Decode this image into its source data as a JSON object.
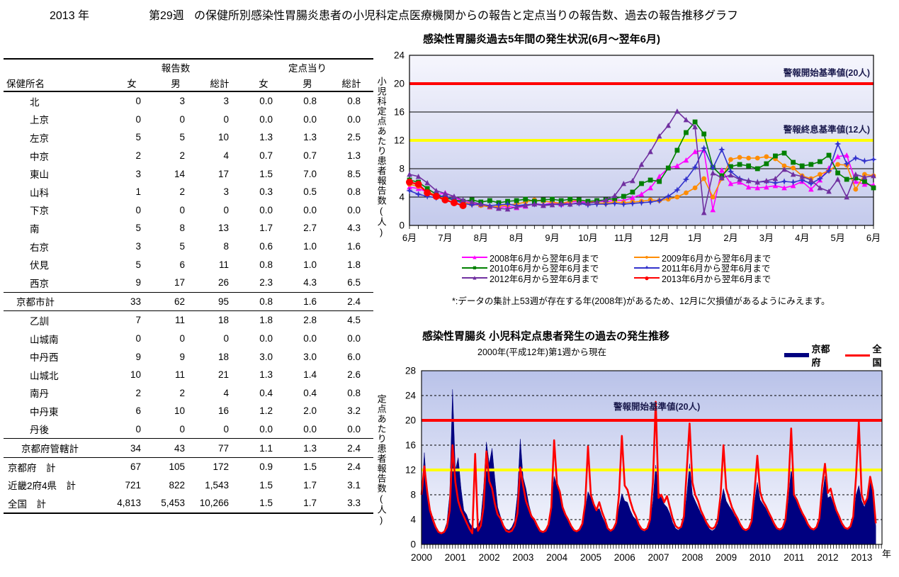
{
  "page_title": {
    "year": "2013 年",
    "week": "第29週",
    "rest": "の保健所別感染性胃腸炎患者の小児科定点医療機関からの報告と定点当りの報告数、過去の報告推移グラフ"
  },
  "table": {
    "group_headers": {
      "reports": "報告数",
      "per_sentinel": "定点当り"
    },
    "col_headers": {
      "name": "保健所名",
      "f": "女",
      "m": "男",
      "total": "総計"
    },
    "rows": [
      {
        "type": "ward",
        "name": "北",
        "values": [
          "0",
          "3",
          "3",
          "0.0",
          "0.8",
          "0.8"
        ]
      },
      {
        "type": "ward",
        "name": "上京",
        "values": [
          "0",
          "0",
          "0",
          "0.0",
          "0.0",
          "0.0"
        ]
      },
      {
        "type": "ward",
        "name": "左京",
        "values": [
          "5",
          "5",
          "10",
          "1.3",
          "1.3",
          "2.5"
        ]
      },
      {
        "type": "ward",
        "name": "中京",
        "values": [
          "2",
          "2",
          "4",
          "0.7",
          "0.7",
          "1.3"
        ]
      },
      {
        "type": "ward",
        "name": "東山",
        "values": [
          "3",
          "14",
          "17",
          "1.5",
          "7.0",
          "8.5"
        ]
      },
      {
        "type": "ward",
        "name": "山科",
        "values": [
          "1",
          "2",
          "3",
          "0.3",
          "0.5",
          "0.8"
        ]
      },
      {
        "type": "ward",
        "name": "下京",
        "values": [
          "0",
          "0",
          "0",
          "0.0",
          "0.0",
          "0.0"
        ]
      },
      {
        "type": "ward",
        "name": "南",
        "values": [
          "5",
          "8",
          "13",
          "1.7",
          "2.7",
          "4.3"
        ]
      },
      {
        "type": "ward",
        "name": "右京",
        "values": [
          "3",
          "5",
          "8",
          "0.6",
          "1.0",
          "1.6"
        ]
      },
      {
        "type": "ward",
        "name": "伏見",
        "values": [
          "5",
          "6",
          "11",
          "0.8",
          "1.0",
          "1.8"
        ]
      },
      {
        "type": "ward",
        "name": "西京",
        "values": [
          "9",
          "17",
          "26",
          "2.3",
          "4.3",
          "6.5"
        ]
      },
      {
        "type": "city-total",
        "name": "京都市計",
        "values": [
          "33",
          "62",
          "95",
          "0.8",
          "1.6",
          "2.4"
        ]
      },
      {
        "type": "ward",
        "name": "乙訓",
        "values": [
          "7",
          "11",
          "18",
          "1.8",
          "2.8",
          "4.5"
        ]
      },
      {
        "type": "ward",
        "name": "山城南",
        "values": [
          "0",
          "0",
          "0",
          "0.0",
          "0.0",
          "0.0"
        ]
      },
      {
        "type": "ward",
        "name": "中丹西",
        "values": [
          "9",
          "9",
          "18",
          "3.0",
          "3.0",
          "6.0"
        ]
      },
      {
        "type": "ward",
        "name": "山城北",
        "values": [
          "10",
          "11",
          "21",
          "1.3",
          "1.4",
          "2.6"
        ]
      },
      {
        "type": "ward",
        "name": "南丹",
        "values": [
          "2",
          "2",
          "4",
          "0.4",
          "0.4",
          "0.8"
        ]
      },
      {
        "type": "ward",
        "name": "中丹東",
        "values": [
          "6",
          "10",
          "16",
          "1.2",
          "2.0",
          "3.2"
        ]
      },
      {
        "type": "ward",
        "name": "丹後",
        "values": [
          "0",
          "0",
          "0",
          "0.0",
          "0.0",
          "0.0"
        ]
      },
      {
        "type": "kanketsu",
        "name": "京都府管轄計",
        "values": [
          "34",
          "43",
          "77",
          "1.1",
          "1.3",
          "2.4"
        ]
      },
      {
        "type": "grand",
        "name": "京都府　計",
        "values": [
          "67",
          "105",
          "172",
          "0.9",
          "1.5",
          "2.4"
        ]
      },
      {
        "type": "grand",
        "name": "近畿2府4県　計",
        "values": [
          "721",
          "822",
          "1,543",
          "1.5",
          "1.7",
          "3.1"
        ]
      },
      {
        "type": "grand grand-last",
        "name": "全国　計",
        "values": [
          "4,813",
          "5,453",
          "10,266",
          "1.5",
          "1.7",
          "3.3"
        ]
      }
    ]
  },
  "chart_data": [
    {
      "type": "line",
      "title": "感染性胃腸炎過去5年間の発生状況(6月～翌年6月)",
      "ylabel": "小児科定点あたり患者報告数(人)",
      "ylim": [
        0,
        24
      ],
      "yticks": [
        0,
        4,
        8,
        12,
        16,
        20,
        24
      ],
      "black_gridlines": [
        4,
        8,
        16
      ],
      "x_tick_labels": [
        "6月",
        "7月",
        "8月",
        "8月",
        "9月",
        "10月",
        "11月",
        "12月",
        "1月",
        "2月",
        "3月",
        "4月",
        "5月",
        "6月"
      ],
      "weeks": 53,
      "grid": "on",
      "legend_position": "bottom",
      "alert_lines": [
        {
          "value": 20,
          "color": "#ff0000",
          "label": "警報開始基準値(20人)"
        },
        {
          "value": 12,
          "color": "#ffff00",
          "label": "警報終息基準値(12人)"
        }
      ],
      "footnote": "*:データの集計上53週が存在する年(2008年)があるため、12月に欠損値があるようにみえます。",
      "series": [
        {
          "name": "2008年6月から翌年6月まで",
          "color": "#ff00ff",
          "marker": "triangle",
          "values": [
            5.4,
            5.2,
            4.7,
            4.3,
            4.6,
            4.0,
            3.4,
            3.1,
            2.9,
            2.6,
            2.5,
            2.7,
            2.5,
            2.7,
            3.1,
            2.9,
            3.2,
            3.0,
            3.3,
            3.4,
            3.2,
            3.5,
            3.3,
            3.6,
            3.5,
            3.9,
            4.4,
            5.3,
            6.9,
            8.1,
            8.4,
            9.2,
            10.4,
            10.6,
            2.2,
            7.8,
            5.9,
            6.1,
            5.4,
            5.3,
            5.4,
            5.6,
            5.3,
            5.6,
            6.2,
            5.1,
            6.4,
            8.1,
            9.7,
            9.9,
            6.2,
            5.8,
            5.7
          ]
        },
        {
          "name": "2009年6月から翌年6月まで",
          "color": "#ff8c00",
          "marker": "circle",
          "values": [
            5.8,
            5.5,
            4.8,
            4.2,
            3.9,
            3.6,
            3.3,
            3.0,
            2.8,
            2.6,
            2.7,
            2.9,
            3.0,
            3.3,
            3.6,
            3.4,
            3.3,
            3.1,
            3.4,
            3.6,
            3.4,
            3.2,
            3.1,
            3.3,
            3.2,
            3.3,
            3.4,
            3.6,
            3.5,
            3.7,
            4.0,
            4.6,
            5.3,
            6.6,
            4.0,
            6.6,
            9.3,
            9.6,
            9.5,
            9.5,
            9.7,
            9.4,
            8.4,
            8.1,
            7.0,
            6.6,
            7.2,
            7.7,
            8.6,
            8.5,
            5.1,
            7.2,
            7.0
          ]
        },
        {
          "name": "2010年6月から翌年6月まで",
          "color": "#008000",
          "marker": "square",
          "values": [
            6.4,
            6.1,
            5.2,
            4.4,
            3.9,
            3.6,
            3.4,
            3.6,
            3.3,
            3.5,
            3.2,
            3.4,
            3.5,
            3.7,
            3.4,
            3.6,
            3.7,
            3.5,
            3.7,
            3.6,
            3.4,
            3.5,
            3.6,
            3.8,
            4.1,
            4.7,
            5.9,
            6.4,
            6.2,
            8.1,
            10.6,
            13.1,
            14.6,
            12.9,
            8.2,
            7.0,
            8.3,
            8.6,
            8.4,
            8.0,
            8.7,
            9.8,
            10.2,
            8.9,
            8.4,
            8.6,
            9.0,
            9.9,
            7.4,
            6.5,
            6.7,
            6.2,
            5.3
          ]
        },
        {
          "name": "2011年6月から翌年6月まで",
          "color": "#3333cc",
          "marker": "star4",
          "values": [
            4.9,
            4.4,
            4.1,
            3.9,
            4.2,
            3.6,
            3.1,
            2.9,
            3.0,
            2.8,
            2.9,
            3.0,
            2.8,
            2.9,
            3.0,
            2.9,
            3.0,
            2.9,
            3.0,
            3.1,
            2.9,
            3.0,
            3.0,
            3.1,
            3.0,
            3.1,
            3.2,
            3.3,
            3.5,
            4.1,
            5.0,
            6.5,
            8.2,
            10.9,
            8.1,
            10.7,
            7.6,
            6.6,
            6.3,
            6.1,
            6.2,
            6.0,
            6.2,
            6.1,
            6.4,
            5.9,
            6.6,
            7.7,
            11.5,
            8.7,
            9.5,
            9.1,
            9.3
          ]
        },
        {
          "name": "2012年6月から翌年6月まで",
          "color": "#7030a0",
          "marker": "triangle",
          "values": [
            7.2,
            6.9,
            6.0,
            4.9,
            4.5,
            4.1,
            3.6,
            3.3,
            3.0,
            2.7,
            2.4,
            2.3,
            2.6,
            2.8,
            3.0,
            2.8,
            2.9,
            3.1,
            3.0,
            3.2,
            3.1,
            3.3,
            3.6,
            4.2,
            5.9,
            6.3,
            8.6,
            10.4,
            12.6,
            14.1,
            16.1,
            14.9,
            13.9,
            1.8,
            7.4,
            6.7,
            7.1,
            6.5,
            6.3,
            6.1,
            6.3,
            6.6,
            7.9,
            7.2,
            6.9,
            6.4,
            5.3,
            4.8,
            6.5,
            4.0,
            7.2,
            6.8,
            7.0
          ]
        },
        {
          "name": "2013年6月から翌年6月まで",
          "color": "#ff0000",
          "marker": "circle",
          "emphasis": true,
          "values": [
            6.1,
            5.8,
            4.6,
            4.1,
            3.6,
            3.2,
            2.8
          ]
        }
      ]
    },
    {
      "type": "area",
      "title": "感染性胃腸炎 小児科定点患者発生の過去の発生推移",
      "subtitle": "2000年(平成12年)第1週から現在",
      "ylabel": "定点あたり患者報告数(人)",
      "xlabel": "年",
      "ylim": [
        0,
        28
      ],
      "yticks": [
        0,
        4,
        8,
        12,
        16,
        20,
        24,
        28
      ],
      "dashed_gridlines": [
        4,
        8,
        16,
        24,
        28
      ],
      "x_start_year": 2000,
      "points_per_year": 12,
      "x_tick_labels": [
        "2000",
        "2001",
        "2002",
        "2003",
        "2004",
        "2005",
        "2006",
        "2007",
        "2008",
        "2009",
        "2010",
        "2011",
        "2012",
        "2013"
      ],
      "alert_lines": [
        {
          "value": 20,
          "color": "#ff0000",
          "label": "警報開始基準値(20人)"
        },
        {
          "value": 12,
          "color": "#ffff00",
          "label": ""
        }
      ],
      "series": [
        {
          "name": "京都府",
          "style": "area",
          "color": "#000080",
          "values": [
            7.5,
            14.8,
            8.0,
            5.0,
            4.5,
            3.0,
            2.0,
            1.8,
            2.2,
            3.5,
            8.0,
            25.0,
            12.0,
            14.0,
            9.0,
            5.5,
            4.8,
            3.5,
            2.8,
            2.5,
            3.0,
            4.0,
            9.0,
            16.5,
            13.0,
            15.5,
            10.5,
            6.0,
            4.5,
            3.2,
            2.5,
            2.3,
            2.8,
            3.8,
            8.0,
            17.0,
            10.8,
            9.0,
            6.5,
            4.8,
            4.0,
            3.0,
            2.3,
            2.0,
            2.5,
            3.3,
            6.0,
            11.0,
            9.5,
            8.0,
            6.0,
            4.5,
            3.8,
            2.8,
            2.2,
            2.0,
            2.4,
            3.2,
            5.5,
            8.5,
            7.5,
            6.5,
            5.5,
            5.8,
            4.5,
            3.5,
            2.4,
            2.1,
            2.4,
            3.3,
            6.0,
            8.2,
            7.0,
            6.8,
            5.5,
            4.5,
            4.0,
            3.0,
            2.3,
            2.1,
            2.5,
            3.5,
            7.0,
            12.8,
            8.5,
            7.5,
            6.5,
            6.0,
            5.0,
            3.5,
            2.6,
            2.3,
            2.7,
            3.8,
            8.0,
            13.0,
            8.0,
            7.0,
            6.0,
            5.0,
            4.2,
            3.2,
            2.5,
            2.2,
            2.5,
            3.4,
            6.5,
            9.0,
            7.0,
            6.2,
            5.5,
            4.6,
            4.0,
            3.0,
            2.4,
            2.2,
            2.5,
            3.5,
            6.8,
            10.0,
            7.2,
            6.5,
            5.8,
            4.8,
            4.0,
            3.1,
            2.5,
            2.3,
            2.6,
            3.6,
            7.0,
            12.3,
            8.0,
            7.0,
            6.0,
            5.0,
            4.3,
            3.2,
            2.6,
            2.3,
            2.7,
            3.7,
            7.5,
            11.0,
            7.5,
            7.8,
            6.5,
            5.2,
            4.4,
            3.3,
            2.6,
            2.4,
            2.8,
            4.0,
            8.0,
            9.5,
            7.0,
            6.0,
            8.0,
            10.5,
            8.0,
            3.0
          ]
        },
        {
          "name": "全　国",
          "style": "line",
          "color": "#ff0000",
          "values": [
            8.0,
            12.6,
            8.5,
            5.5,
            4.0,
            2.8,
            2.0,
            1.8,
            2.0,
            2.8,
            5.5,
            16.0,
            10.0,
            7.0,
            5.5,
            4.5,
            3.5,
            2.5,
            1.8,
            14.6,
            2.2,
            3.0,
            6.0,
            15.0,
            10.2,
            9.0,
            6.5,
            4.8,
            4.2,
            3.0,
            2.2,
            2.0,
            2.2,
            3.0,
            5.0,
            12.4,
            9.5,
            7.0,
            5.8,
            4.5,
            4.0,
            3.0,
            2.2,
            2.0,
            2.2,
            3.2,
            6.0,
            16.8,
            9.8,
            8.5,
            6.0,
            4.8,
            4.0,
            3.0,
            2.3,
            2.1,
            2.4,
            3.3,
            6.5,
            15.8,
            8.0,
            6.5,
            5.5,
            6.8,
            5.2,
            4.0,
            2.6,
            2.2,
            2.5,
            3.5,
            8.0,
            17.5,
            9.5,
            8.8,
            7.0,
            5.5,
            4.5,
            3.2,
            2.5,
            2.3,
            2.6,
            4.0,
            10.0,
            23.0,
            7.5,
            8.0,
            6.8,
            7.8,
            6.0,
            4.2,
            3.0,
            2.6,
            2.8,
            4.5,
            12.0,
            19.5,
            10.0,
            8.0,
            7.0,
            5.5,
            4.5,
            3.5,
            2.8,
            2.5,
            2.8,
            4.0,
            8.0,
            16.0,
            9.0,
            7.5,
            6.0,
            5.0,
            4.2,
            3.2,
            2.5,
            2.3,
            2.6,
            3.8,
            8.5,
            14.3,
            8.5,
            7.0,
            6.2,
            5.2,
            4.3,
            3.3,
            2.6,
            2.4,
            2.7,
            4.0,
            9.0,
            18.7,
            8.0,
            7.2,
            6.0,
            5.0,
            4.2,
            3.2,
            2.6,
            2.4,
            2.8,
            4.2,
            9.5,
            13.0,
            8.3,
            9.0,
            7.0,
            5.5,
            4.5,
            3.4,
            2.7,
            2.5,
            2.9,
            4.5,
            11.0,
            19.8,
            8.0,
            6.5,
            7.5,
            10.9,
            8.7,
            3.4
          ]
        }
      ]
    }
  ]
}
